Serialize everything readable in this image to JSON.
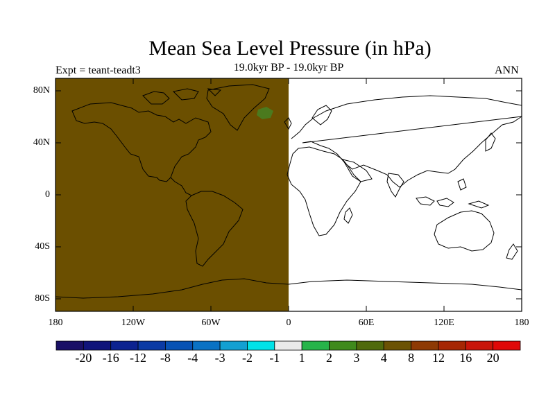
{
  "title": "Mean Sea Level Pressure (in hPa)",
  "subtitle_left": "Expt = teant-teadt3",
  "subtitle_center": "19.0kyr BP - 19.0kyr BP",
  "subtitle_right": "ANN",
  "axes": {
    "lon_labels": [
      "180",
      "120W",
      "60W",
      "0",
      "60E",
      "120E",
      "180"
    ],
    "lat_labels": [
      "80N",
      "40N",
      "0",
      "40S",
      "80S"
    ]
  },
  "field": {
    "western_hemisphere_color": "#6b4f00",
    "eastern_hemisphere_color": "#ffffff",
    "patch_color": "#4b7a1e",
    "coastline_color": "#000000"
  },
  "colorbar": {
    "labels": [
      "-20",
      "-16",
      "-12",
      "-8",
      "-4",
      "-3",
      "-2",
      "-1",
      "1",
      "2",
      "3",
      "4",
      "8",
      "12",
      "16",
      "20"
    ],
    "colors": [
      "#1a1066",
      "#10147a",
      "#0c2390",
      "#0a3aa4",
      "#0752b4",
      "#0a72c4",
      "#13a0d2",
      "#00e2e8",
      "#eaeaea",
      "#26b44a",
      "#3f8a1c",
      "#4f6a0c",
      "#6b5204",
      "#8e3a04",
      "#a62704",
      "#c8160a",
      "#e00808"
    ]
  }
}
